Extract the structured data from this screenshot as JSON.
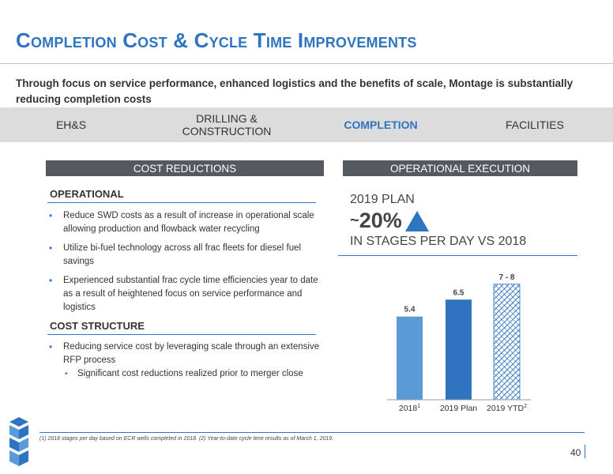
{
  "header": {
    "title": "Completion Cost & Cycle Time Improvements",
    "subtitle": "Through focus on service performance, enhanced logistics and the benefits of scale, Montage is substantially reducing completion costs"
  },
  "tabs": [
    {
      "label": "EH&S",
      "active": false
    },
    {
      "label": "DRILLING &\nCONSTRUCTION",
      "active": false
    },
    {
      "label": "COMPLETION",
      "active": true
    },
    {
      "label": "FACILITIES",
      "active": false
    }
  ],
  "left": {
    "header": "COST REDUCTIONS",
    "operational": {
      "heading": "OPERATIONAL",
      "bullets": [
        "Reduce SWD costs as a result of increase in operational scale allowing production and flowback water recycling",
        "Utilize bi-fuel technology across all frac fleets for diesel fuel savings",
        "Experienced substantial frac cycle time efficiencies year to date as a result of heightened focus on service performance and logistics"
      ]
    },
    "cost_structure": {
      "heading": "COST STRUCTURE",
      "bullets": [
        "Reducing service cost by leveraging scale through an extensive RFP process"
      ],
      "sub_bullets": [
        "Significant cost reductions realized prior to merger close"
      ]
    }
  },
  "right": {
    "header": "OPERATIONAL EXECUTION",
    "plan_label": "2019 PLAN",
    "plan_tilde": "~",
    "plan_value": "20%",
    "plan_caption": "IN STAGES PER DAY VS 2018"
  },
  "chart_data": {
    "type": "bar",
    "categories": [
      "2018",
      "2019 Plan",
      "2019 YTD"
    ],
    "category_superscripts": [
      "1",
      "",
      "2"
    ],
    "values": [
      5.4,
      6.5,
      7.5
    ],
    "data_labels": [
      "5.4",
      "6.5",
      "7 - 8"
    ],
    "ylim": [
      0,
      8
    ],
    "colors": [
      "#5b9bd5",
      "#2f74c0",
      "hatched"
    ],
    "title": "",
    "xlabel": "",
    "ylabel": ""
  },
  "footer": {
    "footnote": "(1)  2018 stages per day based on ECR wells completed in 2018.  (2) Year-to-date cycle time results as of March 1, 2019.",
    "page_number": "40"
  },
  "colors": {
    "accent": "#2f74c0",
    "section_header": "#545a60",
    "tab_bg": "#dcdcdc"
  }
}
